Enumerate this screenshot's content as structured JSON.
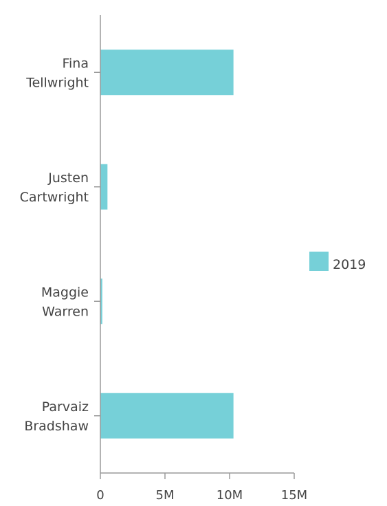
{
  "chart_data": {
    "type": "bar",
    "orientation": "horizontal",
    "categories": [
      [
        "Fina",
        "Tellwright"
      ],
      [
        "Justen",
        "Cartwright"
      ],
      [
        "Maggie",
        "Warren"
      ],
      [
        "Parvaiz",
        "Bradshaw"
      ]
    ],
    "series": [
      {
        "name": "2019",
        "color": "#76d0d8",
        "values": [
          10300000,
          550000,
          150000,
          10300000
        ]
      }
    ],
    "xlim": [
      0,
      15000000
    ],
    "x_ticks": [
      {
        "value": 0,
        "label": "0"
      },
      {
        "value": 5000000,
        "label": "5M"
      },
      {
        "value": 10000000,
        "label": "10M"
      },
      {
        "value": 15000000,
        "label": "15M"
      }
    ],
    "grid": false,
    "legend_position": "right",
    "axis_color": "#9a9a9a"
  }
}
